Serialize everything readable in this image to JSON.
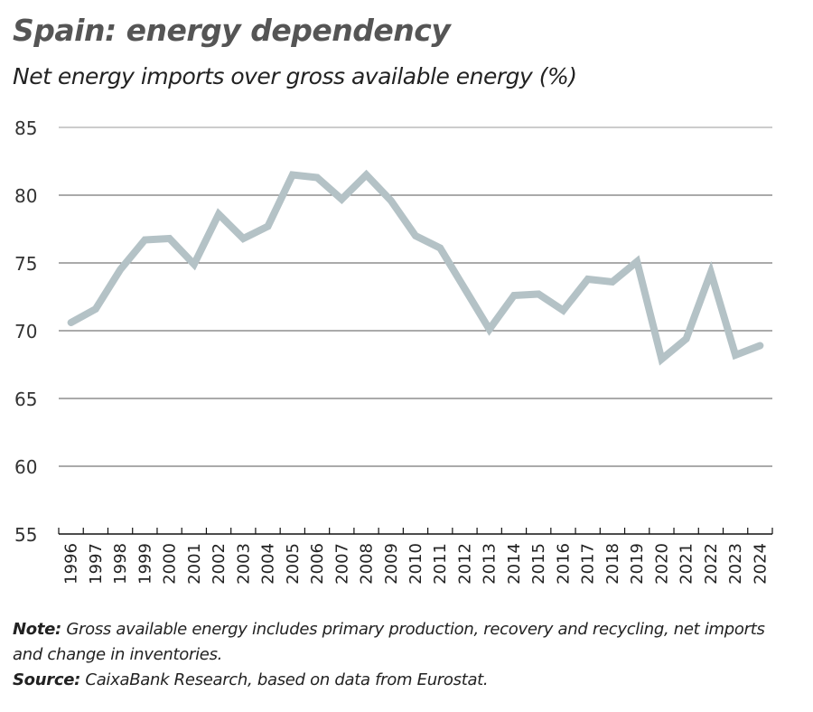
{
  "chart_data": {
    "type": "line",
    "title": "Spain: energy dependency",
    "subtitle": "Net energy imports over gross available energy (%)",
    "xlabel": "",
    "ylabel": "",
    "ylim": [
      55,
      85
    ],
    "yticks": [
      "55",
      "60",
      "65",
      "70",
      "75",
      "80",
      "85"
    ],
    "grid": true,
    "x": [
      "1996",
      "1997",
      "1998",
      "1999",
      "2000",
      "2001",
      "2002",
      "2003",
      "2004",
      "2005",
      "2006",
      "2007",
      "2008",
      "2009",
      "2010",
      "2011",
      "2012",
      "2013",
      "2014",
      "2015",
      "2016",
      "2017",
      "2018",
      "2019",
      "2020",
      "2021",
      "2022",
      "2023",
      "2024"
    ],
    "series": [
      {
        "values": [
          70.6,
          71.6,
          74.5,
          76.7,
          76.8,
          74.9,
          78.6,
          76.8,
          77.7,
          81.5,
          81.3,
          79.7,
          81.5,
          79.6,
          77.0,
          76.1,
          73.1,
          70.1,
          72.6,
          72.7,
          71.5,
          73.8,
          73.6,
          75.1,
          67.9,
          69.4,
          74.3,
          68.2,
          68.9
        ],
        "color": "#b4c2c6"
      }
    ]
  },
  "note": {
    "label": "Note:",
    "text": " Gross available energy includes primary production, recovery and recycling, net imports and change in inventories."
  },
  "source": {
    "label": "Source:",
    "text": " CaixaBank Research, based on data from Eurostat."
  }
}
